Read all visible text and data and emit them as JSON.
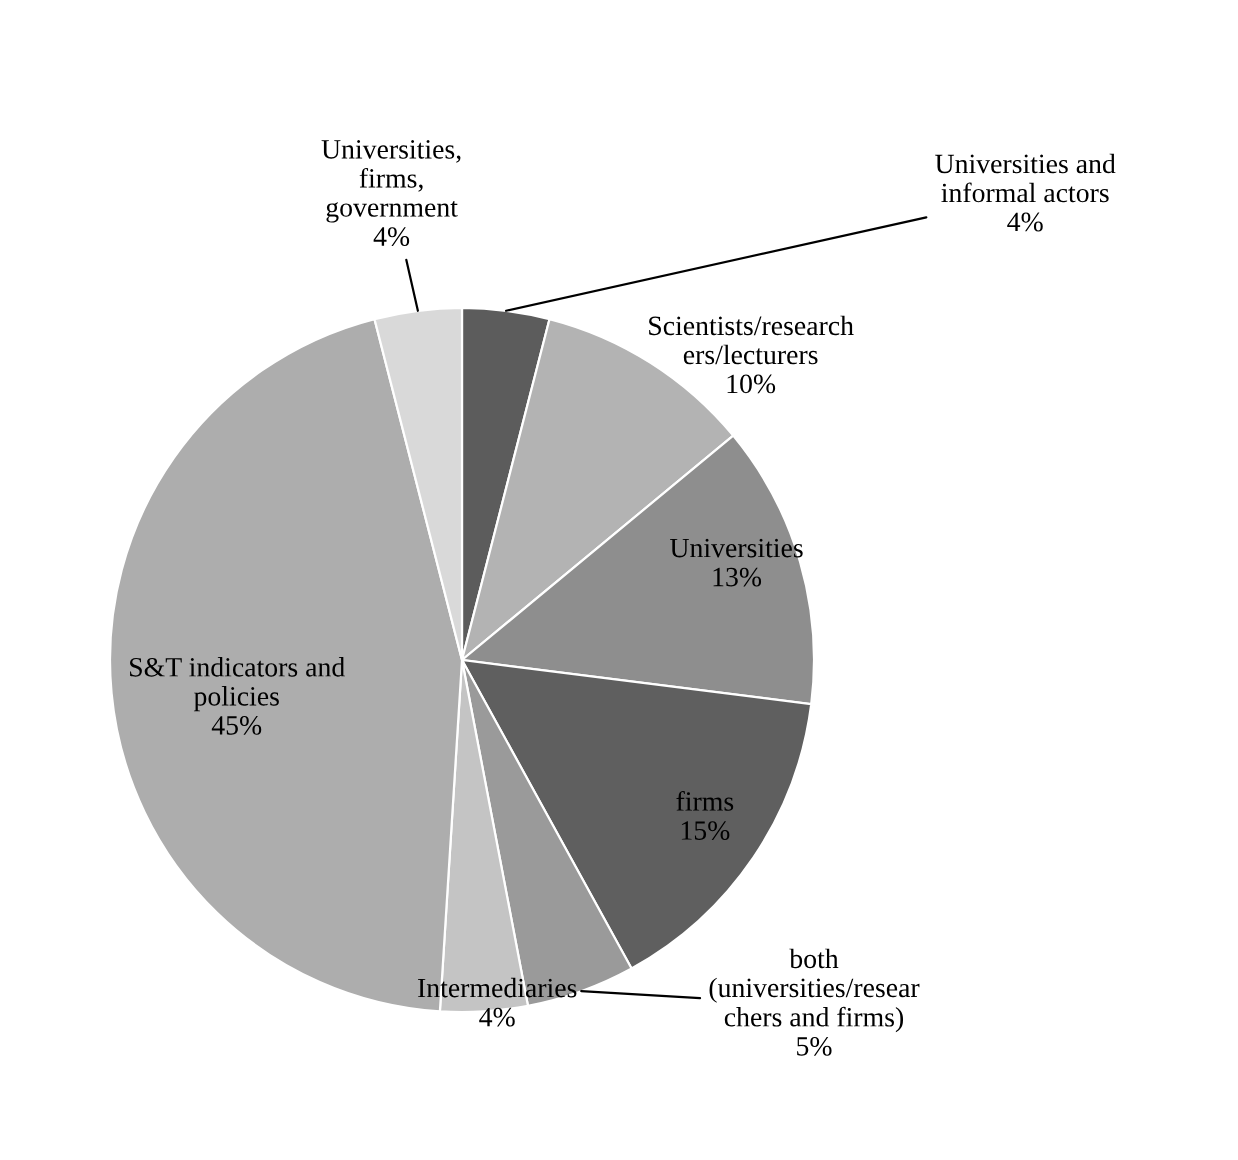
{
  "chart_data": {
    "type": "pie",
    "categories": [
      "Universities and\ninformal actors",
      "Scientists/research\ners/lecturers",
      "Universities",
      "firms",
      "both\n(universities/resear\nchers and firms)",
      "Intermediaries",
      "S&T indicators and\npolicies",
      "Universities,\nfirms,\ngovernment"
    ],
    "values": [
      4,
      10,
      13,
      15,
      5,
      4,
      45,
      4
    ],
    "colors": [
      "#5c5c5c",
      "#b3b3b3",
      "#8e8e8e",
      "#5f5f5f",
      "#9a9a9a",
      "#c4c4c4",
      "#adadad",
      "#d9d9d9"
    ],
    "value_labels": [
      "4%",
      "10%",
      "13%",
      "15%",
      "5%",
      "4%",
      "45%",
      "4%"
    ]
  }
}
